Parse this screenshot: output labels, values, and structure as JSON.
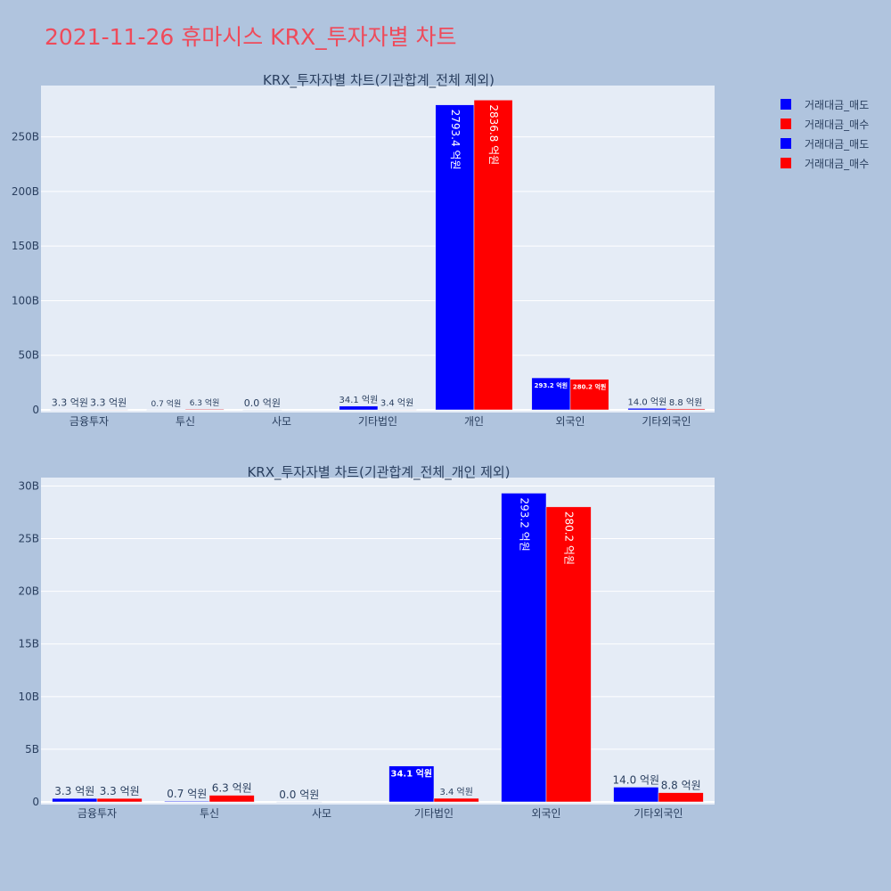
{
  "page": {
    "title": "2021-11-26 휴마시스 KRX_투자자별 차트"
  },
  "colors": {
    "sell": "#0000ff",
    "buy": "#ff0000",
    "plot_bg": "#e5ecf6",
    "axis_text": "#2a3f5f"
  },
  "legend": {
    "items": [
      {
        "label": "거래대금_매도",
        "color": "#0000ff"
      },
      {
        "label": "거래대금_매수",
        "color": "#ff0000"
      },
      {
        "label": "거래대금_매도",
        "color": "#0000ff"
      },
      {
        "label": "거래대금_매수",
        "color": "#ff0000"
      }
    ]
  },
  "chart_data": [
    {
      "type": "bar",
      "title": "KRX_투자자별 차트(기관합계_전체 제외)",
      "categories": [
        "금융투자",
        "투신",
        "사모",
        "기타법인",
        "개인",
        "외국인",
        "기타외국인"
      ],
      "ylim": [
        0,
        297
      ],
      "yticks": [
        0,
        50,
        100,
        150,
        200,
        250
      ],
      "ytick_labels": [
        "0",
        "50B",
        "100B",
        "150B",
        "200B",
        "250B"
      ],
      "grid": true,
      "legend_position": "top-right",
      "series": [
        {
          "name": "거래대금_매도",
          "color": "#0000ff",
          "values": [
            0.33,
            0.07,
            0.0,
            3.41,
            279.34,
            29.32,
            1.4
          ],
          "labels": [
            "3.3 억원",
            "0.7 억원",
            "0.0 억원",
            "34.1 억원",
            "2793.4 억원",
            "293.2 억원",
            "14.0 억원"
          ]
        },
        {
          "name": "거래대금_매수",
          "color": "#ff0000",
          "values": [
            0.33,
            0.63,
            null,
            0.34,
            283.68,
            28.02,
            0.88
          ],
          "labels": [
            "3.3 억원",
            "6.3 억원",
            "",
            "3.4 억원",
            "2836.8 억원",
            "280.2 억원",
            "8.8 억원"
          ]
        }
      ]
    },
    {
      "type": "bar",
      "title": "KRX_투자자별 차트(기관합계_전체_개인 제외)",
      "categories": [
        "금융투자",
        "투신",
        "사모",
        "기타법인",
        "외국인",
        "기타외국인"
      ],
      "ylim": [
        0,
        30.8
      ],
      "yticks": [
        0,
        5,
        10,
        15,
        20,
        25,
        30
      ],
      "ytick_labels": [
        "0",
        "5B",
        "10B",
        "15B",
        "20B",
        "25B",
        "30B"
      ],
      "grid": true,
      "series": [
        {
          "name": "거래대금_매도",
          "color": "#0000ff",
          "values": [
            0.33,
            0.07,
            0.0,
            3.41,
            29.32,
            1.4
          ],
          "labels": [
            "3.3 억원",
            "0.7 억원",
            "0.0 억원",
            "34.1 억원",
            "293.2 억원",
            "14.0 억원"
          ]
        },
        {
          "name": "거래대금_매수",
          "color": "#ff0000",
          "values": [
            0.33,
            0.63,
            null,
            0.34,
            28.02,
            0.88
          ],
          "labels": [
            "3.3 억원",
            "6.3 억원",
            "",
            "3.4 억원",
            "280.2 억원",
            "8.8 억원"
          ]
        }
      ]
    }
  ]
}
